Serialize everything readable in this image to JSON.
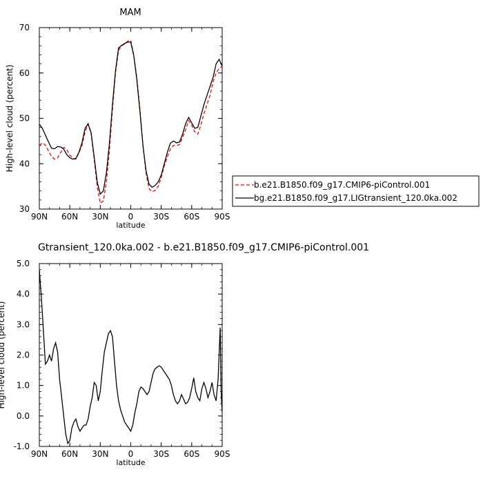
{
  "chart_data": [
    {
      "type": "line",
      "title": "MAM",
      "xlabel": "latitude",
      "ylabel": "High-level cloud (percent)",
      "xlim": [
        90,
        -90
      ],
      "ylim": [
        30,
        70
      ],
      "x_ticks": [
        90,
        60,
        30,
        0,
        -30,
        -60,
        -90
      ],
      "x_tick_labels": [
        "90N",
        "60N",
        "30N",
        "0",
        "30S",
        "60S",
        "90S"
      ],
      "y_ticks": [
        30,
        40,
        50,
        60,
        70
      ],
      "y_tick_labels": [
        "30",
        "40",
        "50",
        "60",
        "70"
      ],
      "legend_position": "right",
      "series": [
        {
          "name": "b.e21.B1850.f09_g17.CMIP6-piControl.001",
          "color": "#ff0000",
          "dash": "dashed",
          "x": [
            90,
            87,
            84,
            81,
            78,
            75,
            72,
            69,
            66,
            63,
            60,
            57,
            54,
            51,
            48,
            45,
            42,
            39,
            36,
            33,
            30,
            27,
            24,
            21,
            18,
            15,
            12,
            9,
            6,
            3,
            0,
            -3,
            -6,
            -9,
            -12,
            -15,
            -18,
            -21,
            -24,
            -27,
            -30,
            -33,
            -36,
            -39,
            -42,
            -45,
            -48,
            -51,
            -54,
            -57,
            -60,
            -63,
            -66,
            -69,
            -72,
            -75,
            -78,
            -81,
            -84,
            -87,
            -90
          ],
          "y": [
            44.0,
            44.6,
            44.1,
            42.8,
            41.6,
            41.0,
            41.3,
            42.4,
            43.6,
            43.1,
            41.9,
            41.2,
            41.0,
            42.4,
            44.0,
            47.0,
            48.8,
            46.5,
            41.0,
            35.0,
            31.3,
            31.8,
            36.0,
            43.0,
            52.0,
            60.0,
            65.0,
            66.0,
            66.4,
            67.0,
            67.2,
            64.0,
            59.0,
            52.0,
            44.0,
            38.0,
            34.5,
            33.8,
            34.1,
            35.0,
            37.0,
            39.5,
            41.5,
            43.2,
            44.0,
            44.0,
            44.2,
            45.8,
            47.5,
            49.5,
            48.5,
            47.0,
            46.5,
            48.5,
            51.0,
            53.0,
            55.0,
            58.0,
            60.0,
            61.0,
            61.5
          ]
        },
        {
          "name": "bg.e21.B1850.f09_g17.LIGtransient_120.0ka.002",
          "color": "#000000",
          "dash": "solid",
          "x": [
            90,
            87,
            84,
            81,
            78,
            75,
            72,
            69,
            66,
            63,
            60,
            57,
            54,
            51,
            48,
            45,
            42,
            39,
            36,
            33,
            30,
            27,
            24,
            21,
            18,
            15,
            12,
            9,
            6,
            3,
            0,
            -3,
            -6,
            -9,
            -12,
            -15,
            -18,
            -21,
            -24,
            -27,
            -30,
            -33,
            -36,
            -39,
            -42,
            -45,
            -48,
            -51,
            -54,
            -57,
            -60,
            -63,
            -66,
            -69,
            -72,
            -75,
            -78,
            -81,
            -84,
            -87,
            -90
          ],
          "y": [
            48.7,
            47.8,
            46.3,
            44.8,
            43.4,
            43.3,
            43.8,
            43.7,
            43.2,
            42.0,
            41.3,
            41.0,
            41.2,
            42.5,
            44.6,
            47.8,
            48.8,
            46.8,
            41.5,
            36.0,
            33.3,
            34.0,
            38.0,
            44.5,
            53.0,
            60.5,
            65.5,
            66.1,
            66.5,
            66.8,
            66.8,
            63.8,
            58.5,
            51.5,
            44.0,
            38.5,
            35.5,
            34.8,
            35.2,
            36.0,
            37.5,
            40.0,
            42.5,
            44.5,
            45.0,
            44.6,
            44.8,
            46.5,
            48.8,
            50.2,
            49.0,
            47.8,
            48.0,
            50.5,
            53.0,
            55.0,
            57.0,
            59.0,
            62.0,
            63.0,
            61.5
          ]
        }
      ]
    },
    {
      "type": "line",
      "title": "Gtransient_120.0ka.002 - b.e21.B1850.f09_g17.CMIP6-piControl.001",
      "xlabel": "latitude",
      "ylabel": "High-level cloud (percent)",
      "xlim": [
        90,
        -90
      ],
      "ylim": [
        -1.0,
        5.0
      ],
      "x_ticks": [
        90,
        60,
        30,
        0,
        -30,
        -60,
        -90
      ],
      "x_tick_labels": [
        "90N",
        "60N",
        "30N",
        "0",
        "30S",
        "60S",
        "90S"
      ],
      "y_ticks": [
        -1.0,
        0.0,
        1.0,
        2.0,
        3.0,
        4.0,
        5.0
      ],
      "y_tick_labels": [
        "-1.0",
        "0.0",
        "1.0",
        "2.0",
        "3.0",
        "4.0",
        "5.0"
      ],
      "series": [
        {
          "color": "#000000",
          "dash": "solid",
          "x": [
            90,
            88,
            86,
            84,
            82,
            80,
            78,
            76,
            74,
            72,
            70,
            68,
            66,
            64,
            62,
            60,
            58,
            56,
            54,
            52,
            50,
            48,
            46,
            44,
            42,
            40,
            38,
            36,
            34,
            32,
            30,
            28,
            26,
            24,
            22,
            20,
            18,
            16,
            14,
            12,
            10,
            8,
            6,
            4,
            2,
            0,
            -2,
            -4,
            -6,
            -8,
            -10,
            -12,
            -14,
            -16,
            -18,
            -20,
            -22,
            -24,
            -26,
            -28,
            -30,
            -32,
            -34,
            -36,
            -38,
            -40,
            -42,
            -44,
            -46,
            -48,
            -50,
            -52,
            -54,
            -56,
            -58,
            -60,
            -62,
            -64,
            -66,
            -68,
            -70,
            -72,
            -74,
            -76,
            -78,
            -80,
            -82,
            -84,
            -86,
            -88,
            -89,
            -90
          ],
          "y": [
            4.8,
            3.9,
            2.8,
            1.7,
            1.8,
            2.0,
            1.8,
            2.2,
            2.4,
            2.1,
            1.2,
            0.6,
            0.0,
            -0.6,
            -0.9,
            -0.8,
            -0.4,
            -0.2,
            -0.1,
            -0.35,
            -0.5,
            -0.4,
            -0.3,
            -0.3,
            -0.1,
            0.3,
            0.6,
            1.1,
            1.0,
            0.5,
            0.8,
            1.5,
            2.1,
            2.4,
            2.7,
            2.8,
            2.6,
            1.8,
            1.0,
            0.5,
            0.2,
            0.0,
            -0.2,
            -0.3,
            -0.4,
            -0.5,
            -0.3,
            0.1,
            0.4,
            0.8,
            0.95,
            0.9,
            0.8,
            0.7,
            0.8,
            1.1,
            1.4,
            1.55,
            1.6,
            1.65,
            1.6,
            1.5,
            1.4,
            1.3,
            1.2,
            1.0,
            0.7,
            0.5,
            0.4,
            0.5,
            0.7,
            0.55,
            0.4,
            0.45,
            0.6,
            0.9,
            1.25,
            0.8,
            0.6,
            0.5,
            0.9,
            1.1,
            0.9,
            0.6,
            0.8,
            1.1,
            0.7,
            0.5,
            1.2,
            2.9,
            0.8,
            0.1
          ]
        }
      ]
    }
  ]
}
